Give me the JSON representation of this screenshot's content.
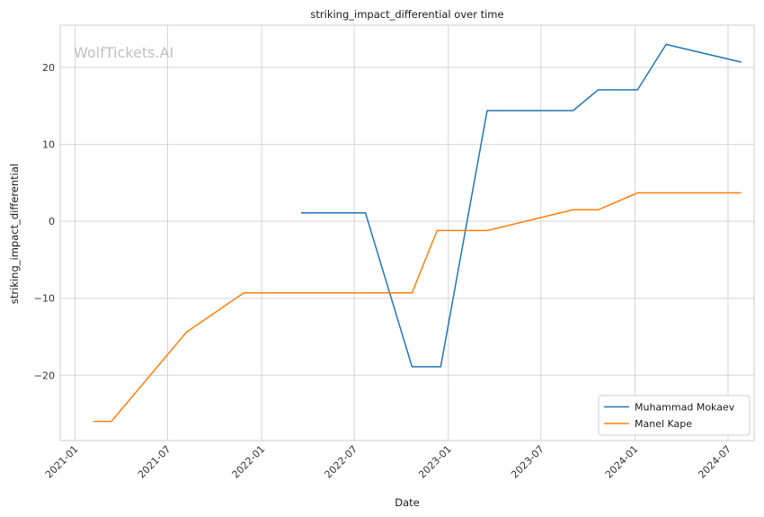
{
  "watermark": "WolfTickets.AI",
  "chart_data": {
    "type": "line",
    "title": "striking_impact_differential over time",
    "xlabel": "Date",
    "ylabel": "striking_impact_differential",
    "x_ticks": [
      "2021-01",
      "2021-07",
      "2022-01",
      "2022-07",
      "2023-01",
      "2023-07",
      "2024-01",
      "2024-07"
    ],
    "y_ticks": [
      -20,
      -10,
      0,
      10,
      20
    ],
    "y_tick_labels": [
      "−20",
      "−10",
      "0",
      "10",
      "20"
    ],
    "xlim": [
      "2020-12-03",
      "2024-08-21"
    ],
    "ylim": [
      -28.5,
      25.5
    ],
    "grid": true,
    "legend_position": "bottom-right",
    "series": [
      {
        "name": "Muhammad Mokaev",
        "color": "#1f77b4",
        "points": [
          [
            "2022-03-19",
            1.1
          ],
          [
            "2022-07-23",
            1.1
          ],
          [
            "2022-10-22",
            -18.9
          ],
          [
            "2022-12-17",
            -18.9
          ],
          [
            "2023-03-18",
            14.4
          ],
          [
            "2023-09-02",
            14.4
          ],
          [
            "2023-10-21",
            17.1
          ],
          [
            "2024-01-06",
            17.1
          ],
          [
            "2024-03-02",
            23.0
          ],
          [
            "2024-07-27",
            20.7
          ]
        ]
      },
      {
        "name": "Manel Kape",
        "color": "#ff7f0e",
        "points": [
          [
            "2021-02-06",
            -26.0
          ],
          [
            "2021-03-13",
            -26.0
          ],
          [
            "2021-08-07",
            -14.4
          ],
          [
            "2021-11-27",
            -9.3
          ],
          [
            "2022-10-22",
            -9.3
          ],
          [
            "2022-12-10",
            -1.2
          ],
          [
            "2023-03-18",
            -1.2
          ],
          [
            "2023-09-02",
            1.5
          ],
          [
            "2023-10-21",
            1.5
          ],
          [
            "2024-01-06",
            3.7
          ],
          [
            "2024-07-27",
            3.7
          ]
        ]
      }
    ]
  }
}
